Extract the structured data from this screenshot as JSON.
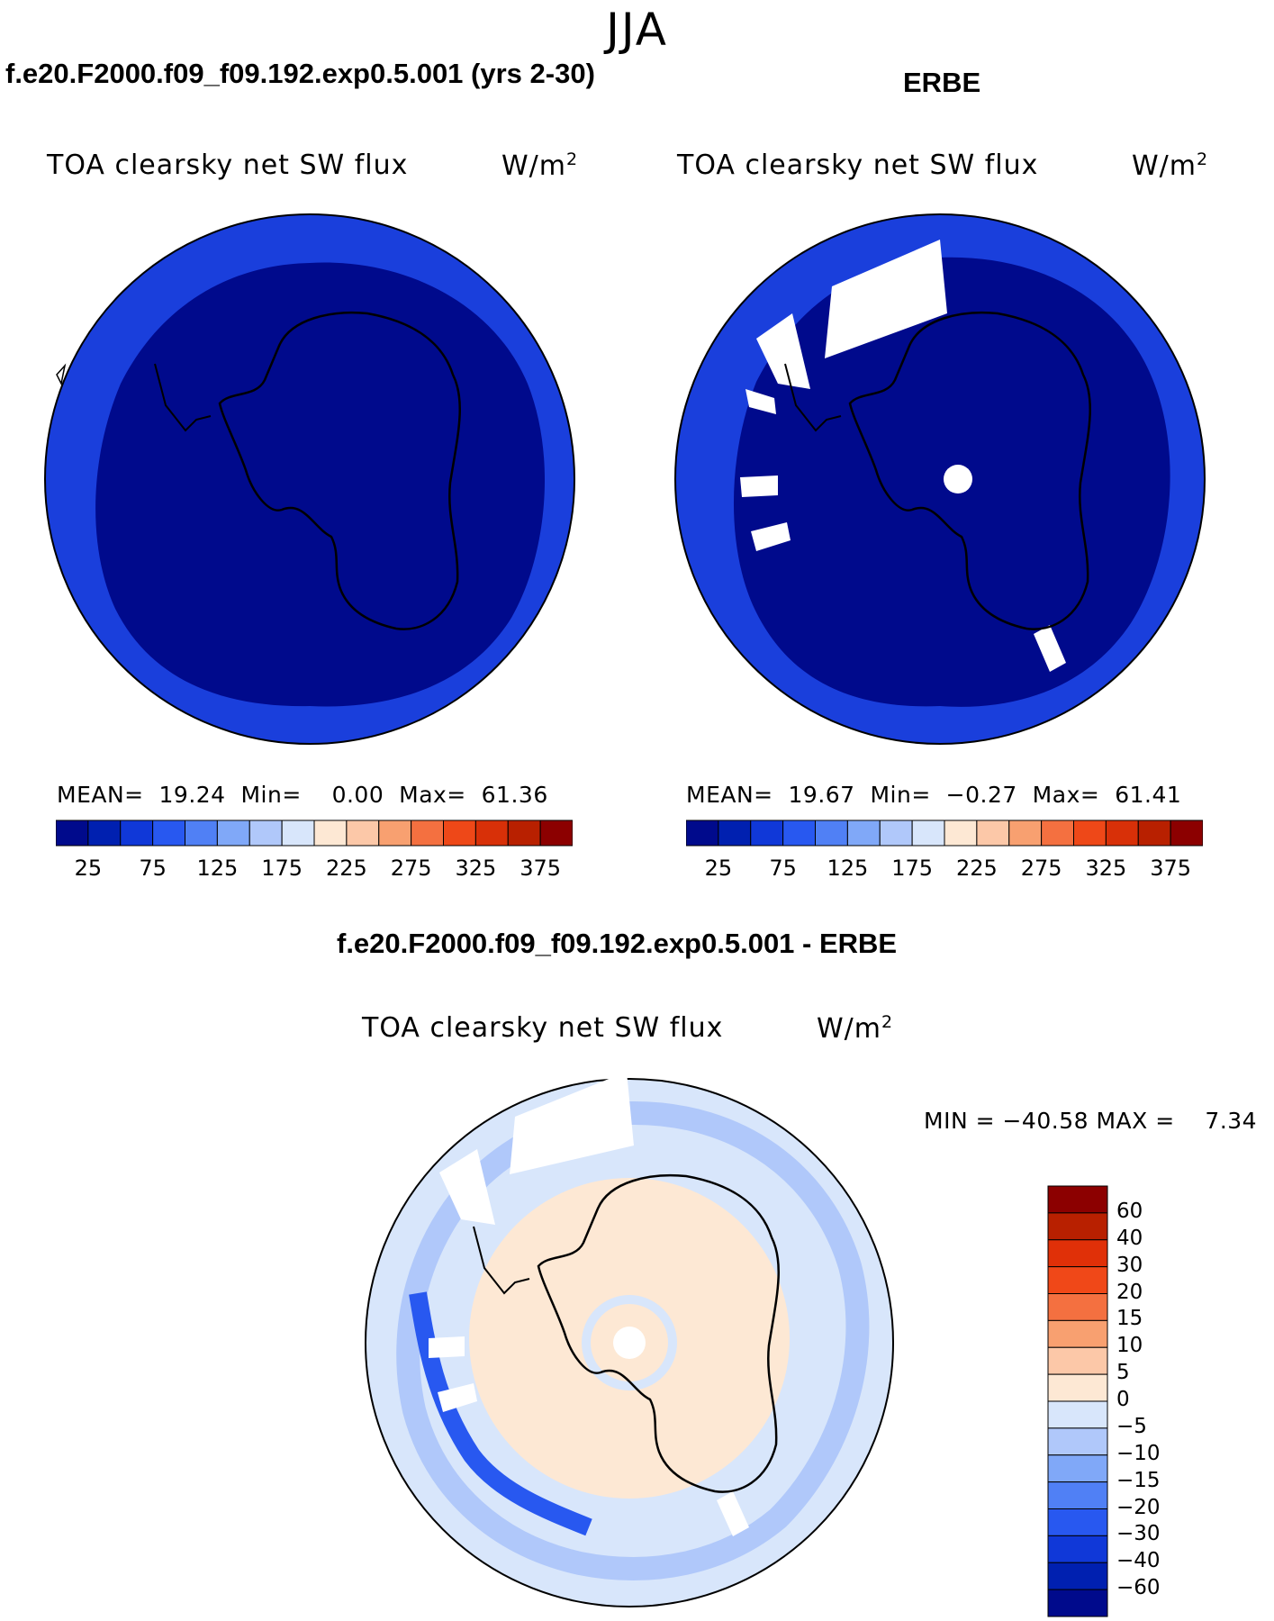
{
  "season": "JJA",
  "model_title": "f.e20.F2000.f09_f09.192.exp0.5.001 (yrs 2-30)",
  "obs_title": "ERBE",
  "diff_title": "f.e20.F2000.f09_f09.192.exp0.5.001 - ERBE",
  "panels": {
    "model": {
      "variable": "TOA clearsky net SW flux",
      "units": "W/m",
      "units_exp": "2",
      "stats": "MEAN=  19.24  Min=    0.00  Max=  61.36"
    },
    "obs": {
      "variable": "TOA clearsky net SW flux",
      "units": "W/m",
      "units_exp": "2",
      "stats": "MEAN=  19.67  Min=  −0.27  Max=  61.41"
    },
    "diff": {
      "variable": "TOA clearsky net SW flux",
      "units": "W/m",
      "units_exp": "2",
      "stats": "MIN = −40.58 MAX =    7.34"
    }
  },
  "colorbar_main": {
    "colors": [
      "#000a8c",
      "#0020b0",
      "#1038d8",
      "#2858f0",
      "#5080f5",
      "#80a8f8",
      "#b0c8fa",
      "#d8e6fb",
      "#fde8d4",
      "#fcc8a8",
      "#f8a070",
      "#f47040",
      "#ee4818",
      "#d83008",
      "#b82000",
      "#8c0000"
    ],
    "labels": [
      "25",
      "75",
      "125",
      "175",
      "225",
      "275",
      "325",
      "375"
    ]
  },
  "colorbar_diff": {
    "colors": [
      "#8c0000",
      "#b82000",
      "#e03008",
      "#f04818",
      "#f47040",
      "#f8a070",
      "#fcc8a8",
      "#fde8d4",
      "#d8e6fb",
      "#b0c8fa",
      "#80a8f8",
      "#5080f5",
      "#2858f0",
      "#1038d8",
      "#0020b0",
      "#000a8c"
    ],
    "labels": [
      "60",
      "40",
      "30",
      "20",
      "15",
      "10",
      "5",
      "0",
      "−5",
      "−10",
      "−15",
      "−20",
      "−30",
      "−40",
      "−60"
    ]
  }
}
